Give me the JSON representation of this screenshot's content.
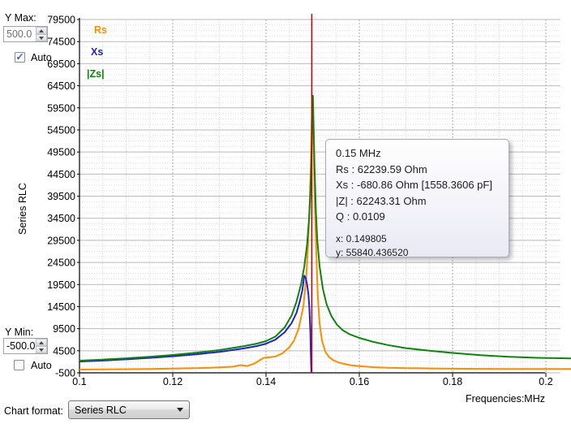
{
  "controls": {
    "y_max_label": "Y Max:",
    "y_max_value": "500.0",
    "y_max_auto_label": "Auto",
    "y_max_auto_check": "✓",
    "y_min_label": "Y Min:",
    "y_min_value": "-500.0",
    "y_min_auto_label": "Auto",
    "y_min_auto_check": "",
    "chart_format_label": "Chart format:",
    "chart_format_value": "Series RLC"
  },
  "tooltip": {
    "title": "0.15 MHz",
    "lines": [
      "Rs :  62239.59 Ohm",
      "Xs :  -680.86 Ohm [1558.3606 pF]",
      "|Z| :  62243.31 Ohm",
      "Q :  0.0109"
    ],
    "cursor": [
      "x: 0.149805",
      "y: 55840.436520"
    ]
  },
  "chart_data": {
    "type": "line",
    "title": "",
    "xlabel": "Frequencies:MHz",
    "ylabel": "Series RLC",
    "xlim": [
      0.1,
      0.2
    ],
    "ylim": [
      -500,
      79500
    ],
    "x_ticks": [
      0.1,
      0.12,
      0.14,
      0.16,
      0.18,
      0.2
    ],
    "x_tick_labels": [
      "0.1",
      "0.12",
      "0.14",
      "0.16",
      "0.18",
      "0.2"
    ],
    "y_tick_step": 5000,
    "y_minor_step": 1250,
    "x_minor_step": 0.005,
    "grid": true,
    "legend_position": "top-left",
    "cursor_x": 0.149805,
    "cursor_color": "#cc0000",
    "series": [
      {
        "name": "Rs",
        "color": "#ff8c00",
        "x": [
          0.1,
          0.105,
          0.11,
          0.115,
          0.12,
          0.125,
          0.128,
          0.131,
          0.133,
          0.1345,
          0.136,
          0.1375,
          0.1385,
          0.1395,
          0.1405,
          0.142,
          0.1435,
          0.145,
          0.146,
          0.147,
          0.148,
          0.1486,
          0.149,
          0.1493,
          0.1496,
          0.1498,
          0.14995,
          0.1501,
          0.1503,
          0.1505,
          0.1508,
          0.1511,
          0.1515,
          0.152,
          0.1527,
          0.1535,
          0.1545,
          0.156,
          0.158,
          0.16,
          0.163,
          0.166,
          0.17,
          0.175,
          0.18,
          0.186,
          0.192,
          0.2,
          0.2055
        ],
        "y": [
          230,
          270,
          320,
          380,
          460,
          570,
          660,
          790,
          900,
          1250,
          1050,
          1600,
          2250,
          2900,
          3000,
          3200,
          3900,
          5300,
          6800,
          9500,
          14500,
          21000,
          28000,
          36000,
          46000,
          56000,
          62240,
          56000,
          46000,
          36000,
          26000,
          17000,
          10500,
          6800,
          4300,
          3100,
          2300,
          1700,
          1250,
          1000,
          780,
          650,
          560,
          490,
          440,
          410,
          390,
          380,
          375
        ]
      },
      {
        "name": "Xs",
        "color": "#2222cc",
        "x": [
          0.1,
          0.105,
          0.11,
          0.115,
          0.12,
          0.125,
          0.13,
          0.135,
          0.138,
          0.14,
          0.142,
          0.144,
          0.1455,
          0.1465,
          0.1472,
          0.1478,
          0.1482,
          0.1485,
          0.1488,
          0.1491,
          0.1493,
          0.1495,
          0.1496,
          0.14968,
          0.14975
        ],
        "y": [
          2050,
          2280,
          2560,
          2880,
          3250,
          3700,
          4250,
          5000,
          5550,
          6100,
          7000,
          8700,
          10800,
          13000,
          15500,
          18200,
          21500,
          21000,
          19500,
          17200,
          14000,
          9000,
          4000,
          500,
          -900
        ]
      },
      {
        "name": "|Zs|",
        "color": "#0e830e",
        "x": [
          0.1,
          0.105,
          0.11,
          0.115,
          0.12,
          0.125,
          0.13,
          0.135,
          0.138,
          0.14,
          0.142,
          0.144,
          0.1455,
          0.1465,
          0.1475,
          0.1482,
          0.1488,
          0.1492,
          0.1495,
          0.1497,
          0.1499,
          0.15005,
          0.1502,
          0.1504,
          0.1507,
          0.151,
          0.1515,
          0.1522,
          0.153,
          0.154,
          0.1552,
          0.1565,
          0.158,
          0.16,
          0.163,
          0.166,
          0.17,
          0.175,
          0.18,
          0.186,
          0.192,
          0.198,
          0.2055
        ],
        "y": [
          2250,
          2500,
          2800,
          3150,
          3550,
          4050,
          4650,
          5500,
          6100,
          6700,
          7700,
          9800,
          12500,
          15500,
          19500,
          23500,
          28500,
          34000,
          40000,
          47000,
          56000,
          62243,
          56000,
          46000,
          36000,
          29500,
          23500,
          18500,
          15000,
          12400,
          10400,
          9100,
          8200,
          7400,
          6500,
          5800,
          5100,
          4500,
          4000,
          3500,
          3150,
          2900,
          2750
        ]
      }
    ]
  }
}
